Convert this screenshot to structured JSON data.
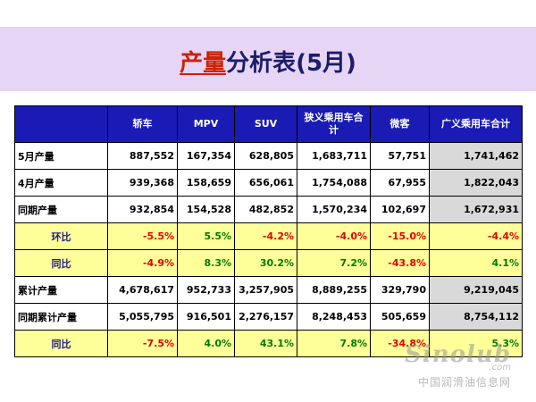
{
  "title": {
    "accent": "产量",
    "rest": "分析表(5月)"
  },
  "table": {
    "columns": [
      "",
      "轿车",
      "MPV",
      "SUV",
      "狭义乘用车合计",
      "微客",
      "广义乘用车合计"
    ],
    "rows": [
      {
        "label": "5月产量",
        "type": "volume",
        "values": [
          "887,552",
          "167,354",
          "628,805",
          "1,683,711",
          "57,751",
          "1,741,462"
        ]
      },
      {
        "label": "4月产量",
        "type": "volume",
        "values": [
          "939,368",
          "158,659",
          "656,061",
          "1,754,088",
          "67,955",
          "1,822,043"
        ]
      },
      {
        "label": "同期产量",
        "type": "volume",
        "values": [
          "932,854",
          "154,528",
          "482,852",
          "1,570,234",
          "102,697",
          "1,672,931"
        ]
      },
      {
        "label": "环比",
        "type": "pct",
        "values": [
          "-5.5%",
          "5.5%",
          "-4.2%",
          "-4.0%",
          "-15.0%",
          "-4.4%"
        ]
      },
      {
        "label": "同比",
        "type": "pct",
        "values": [
          "-4.9%",
          "8.3%",
          "30.2%",
          "7.2%",
          "-43.8%",
          "4.1%"
        ]
      },
      {
        "label": "累计产量",
        "type": "volume",
        "values": [
          "4,678,617",
          "952,733",
          "3,257,905",
          "8,889,255",
          "329,790",
          "9,219,045"
        ]
      },
      {
        "label": "同期累计产量",
        "type": "volume",
        "values": [
          "5,055,795",
          "916,501",
          "2,276,157",
          "8,248,453",
          "505,659",
          "8,754,112"
        ]
      },
      {
        "label": "同比",
        "type": "pct",
        "values": [
          "-7.5%",
          "4.0%",
          "43.1%",
          "7.8%",
          "-34.8%",
          "5.3%"
        ]
      }
    ]
  },
  "watermark": {
    "logo": "Sinolub",
    "sub": ".com",
    "cn": "中国润滑油信息网"
  },
  "colors": {
    "header_bg": "#1a1ab4",
    "banner_bg": "#e6d5f5",
    "pct_row_bg": "#ffff99",
    "total_col_bg": "#d9d9d9",
    "negative": "#e60000",
    "positive": "#007a00"
  }
}
